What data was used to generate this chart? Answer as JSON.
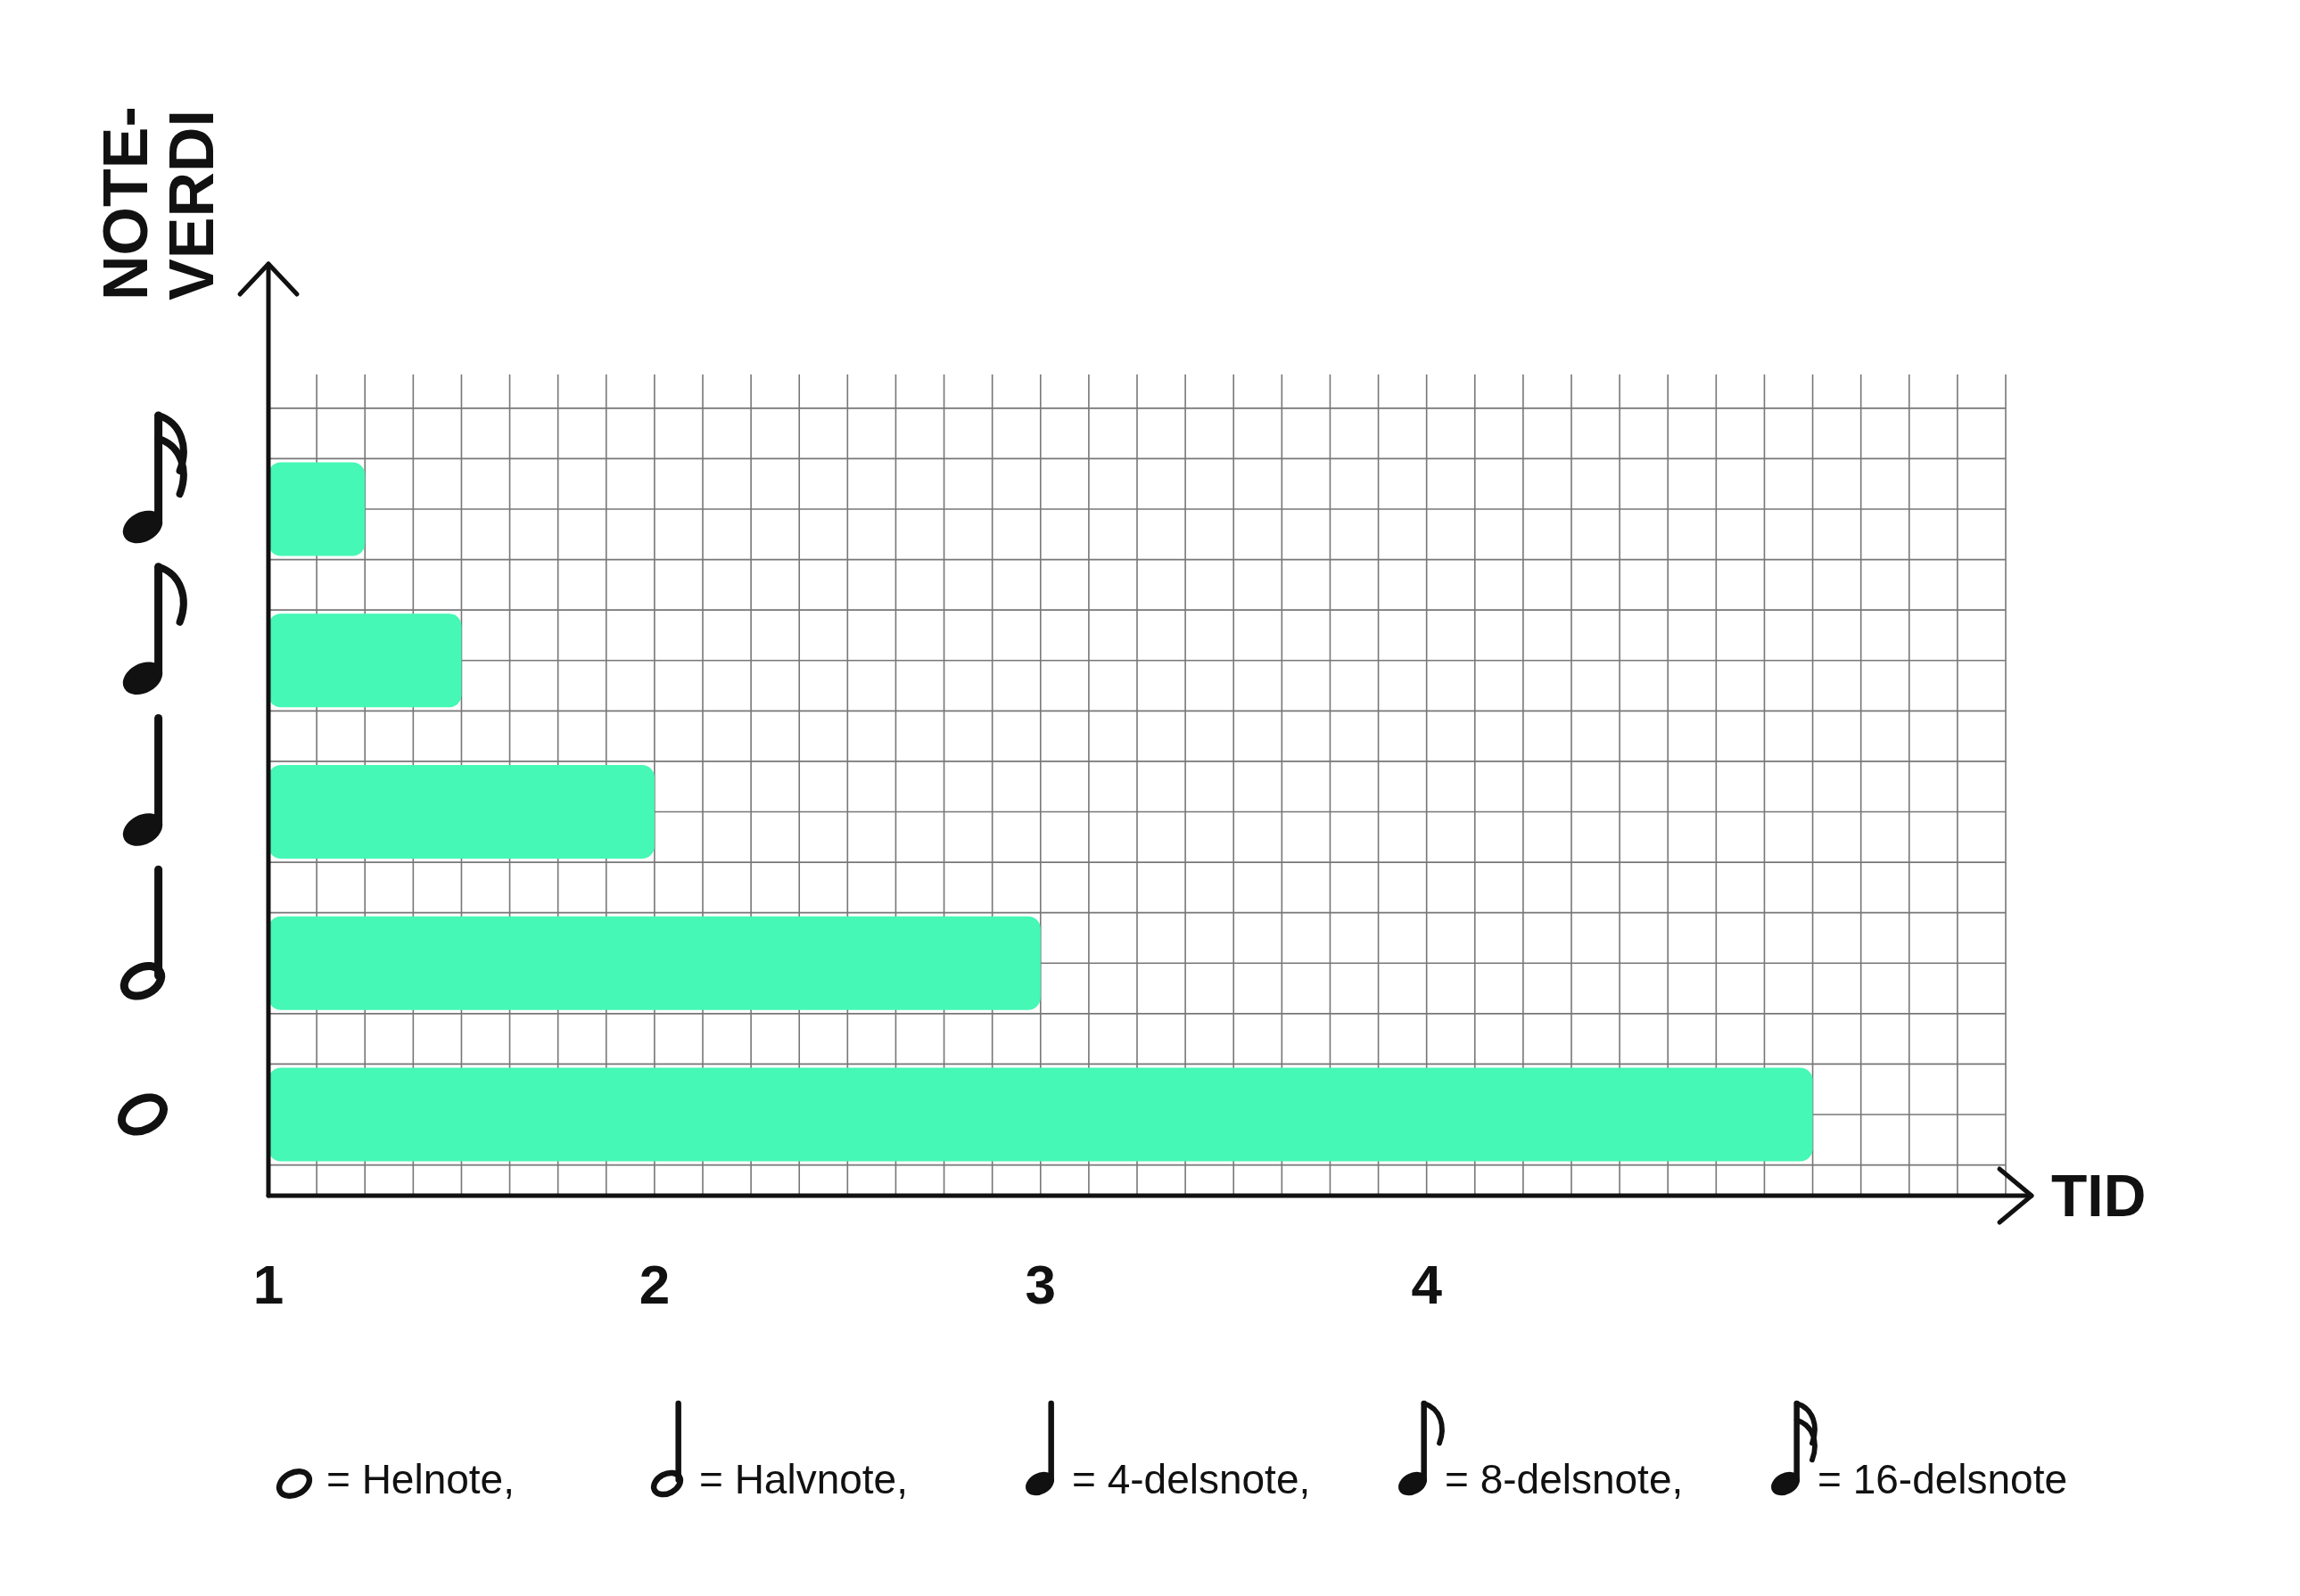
{
  "chart_data": {
    "type": "bar",
    "orientation": "horizontal",
    "xlabel": "TID",
    "ylabel": "NOTE-VERDI",
    "categories": [
      null,
      null,
      null,
      null,
      null
    ],
    "values": [
      0.25,
      0.5,
      1,
      2,
      4
    ],
    "base": [
      1,
      1,
      1,
      1,
      1
    ],
    "color": "#45f8b5",
    "xlim": [
      1,
      5.5
    ],
    "xticks": [
      1,
      {
        "value": 1.125,
        "label": null
      },
      {
        "value": 1.25,
        "label": null
      },
      {
        "value": 1.375,
        "label": null
      },
      {
        "value": 1.5,
        "label": null
      },
      {
        "value": 1.625,
        "label": null
      },
      {
        "value": 1.75,
        "label": null
      },
      {
        "value": 1.875,
        "label": null
      },
      2,
      {
        "value": 2.125,
        "label": null
      },
      {
        "value": 2.25,
        "label": null
      },
      {
        "value": 2.375,
        "label": null
      },
      {
        "value": 2.5,
        "label": null
      },
      {
        "value": 2.625,
        "label": null
      },
      {
        "value": 2.75,
        "label": null
      },
      {
        "value": 2.875,
        "label": null
      },
      3,
      {
        "value": 3.125,
        "label": null
      },
      {
        "value": 3.25,
        "label": null
      },
      {
        "value": 3.375,
        "label": null
      },
      {
        "value": 3.5,
        "label": null
      },
      {
        "value": 3.625,
        "label": null
      },
      {
        "value": 3.75,
        "label": null
      },
      {
        "value": 3.875,
        "label": null
      },
      4,
      {
        "value": 4.125,
        "label": null
      },
      {
        "value": 4.25,
        "label": null
      },
      {
        "value": 4.375,
        "label": null
      },
      {
        "value": 4.5,
        "label": null
      },
      {
        "value": 4.625,
        "label": null
      },
      {
        "value": 4.75,
        "label": null
      },
      {
        "value": 4.875,
        "label": null
      },
      {
        "value": 5,
        "label": null
      },
      {
        "value": 5.125,
        "label": null
      },
      {
        "value": 5.25,
        "label": null
      },
      {
        "value": 5.375,
        "label": null
      },
      {
        "value": 5.5,
        "label": null
      }
    ],
    "grid": true,
    "annotations": [
      "= Helnote,",
      "= Halvnote,",
      "= 4-delsnote,",
      "= 8-delsnote,",
      "= 16-delsnote"
    ]
  }
}
